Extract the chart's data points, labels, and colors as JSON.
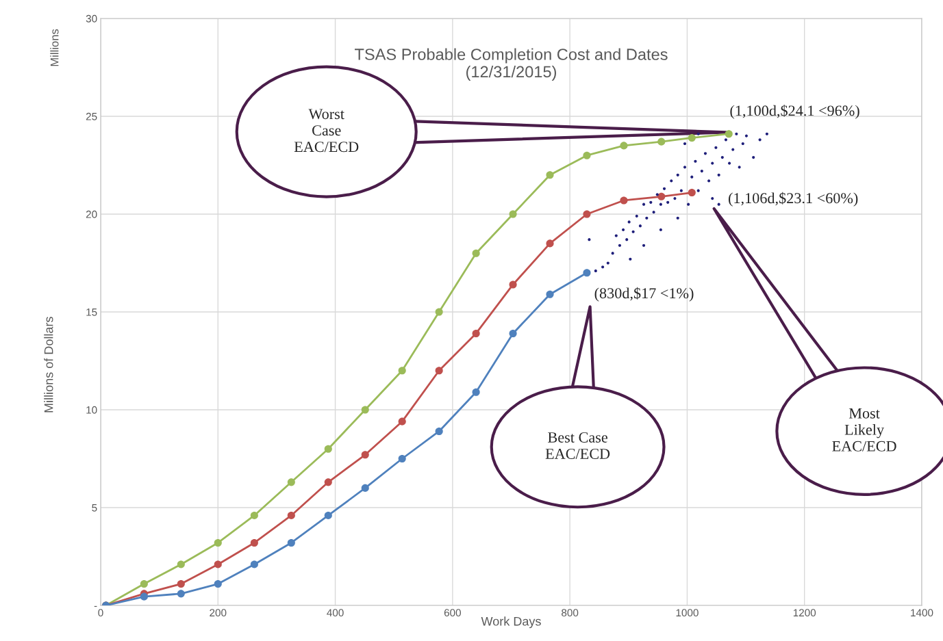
{
  "chart_data": {
    "type": "line",
    "title": "TSAS Probable Completion Cost and Dates\n(12/31/2015)",
    "xlabel": "Work Days",
    "ylabel": "Millions of Dollars",
    "xlim": [
      0,
      1400
    ],
    "xticks": [
      0,
      200,
      400,
      600,
      800,
      1000,
      1200,
      1400
    ],
    "ylim": [
      0,
      30
    ],
    "yticks": [
      {
        "value": 0,
        "label": "-"
      },
      5,
      10,
      15,
      20,
      25,
      30
    ],
    "grid": true,
    "marker": "circle",
    "line_style": "solid",
    "series": [
      {
        "color": "#9bbb59",
        "x": [
          9,
          74,
          137,
          200,
          262,
          325,
          388,
          451,
          514,
          577,
          640,
          703,
          766,
          829,
          892,
          956,
          1008,
          1071
        ],
        "values": [
          0,
          1.1,
          2.1,
          3.2,
          4.6,
          6.3,
          8,
          10,
          12,
          15,
          18,
          20,
          22,
          23,
          23.5,
          23.7,
          23.9,
          24.1
        ]
      },
      {
        "color": "#c0504d",
        "x": [
          9,
          74,
          137,
          200,
          262,
          325,
          388,
          451,
          514,
          577,
          640,
          703,
          766,
          829,
          892,
          956,
          1008
        ],
        "values": [
          0,
          0.6,
          1.1,
          2.1,
          3.2,
          4.6,
          6.3,
          7.7,
          9.4,
          12,
          13.9,
          16.4,
          18.5,
          20,
          20.7,
          20.9,
          21.1
        ]
      },
      {
        "color": "#4f81bd",
        "x": [
          9,
          74,
          137,
          200,
          262,
          325,
          388,
          451,
          514,
          577,
          640,
          703,
          766,
          829
        ],
        "values": [
          0,
          0.45,
          0.6,
          1.1,
          2.1,
          3.2,
          4.6,
          6,
          7.5,
          8.9,
          10.9,
          13.9,
          15.9,
          17
        ]
      },
      {
        "type": "scatter",
        "color": "#1f1f7a",
        "x": [
          844,
          856,
          865,
          833,
          873,
          879,
          885,
          891,
          897,
          901,
          908,
          914,
          920,
          926,
          931,
          938,
          943,
          949,
          955,
          961,
          967,
          973,
          979,
          984,
          990,
          996,
          1002,
          1008,
          1014,
          1019,
          1025,
          1031,
          1037,
          1043,
          1049,
          1054,
          1060,
          1066,
          1072,
          1078,
          1084,
          1089,
          1095,
          1101,
          1113,
          1124,
          1136,
          1043,
          1054,
          984,
          955,
          996,
          1019,
          903,
          926
        ],
        "values": [
          17.1,
          17.3,
          17.5,
          18.7,
          18,
          18.9,
          18.4,
          19.2,
          18.7,
          19.6,
          19.1,
          19.9,
          19.4,
          20.5,
          19.8,
          20.6,
          20.1,
          21,
          20.5,
          21.3,
          20.6,
          21.7,
          20.8,
          22,
          21.2,
          22.4,
          20.5,
          21.9,
          22.7,
          21.2,
          22.2,
          23.1,
          21.7,
          22.6,
          23.4,
          22,
          22.9,
          23.8,
          22.6,
          23.3,
          24.1,
          22.4,
          23.6,
          24,
          22.9,
          23.8,
          24.1,
          20.8,
          20.5,
          19.8,
          19.2,
          23.6,
          24.1,
          17.7,
          18.4
        ]
      }
    ],
    "annotations": [
      "Millions",
      "(1,100d,$24.1 <96%)",
      "(1,106d,$23.1 <60%)",
      "(830d,$17 <1%)",
      "Worst\nCase\nEAC/ECD",
      "Best Case\nEAC/ECD",
      "Most\nLikely\nEAC/ECD"
    ]
  }
}
